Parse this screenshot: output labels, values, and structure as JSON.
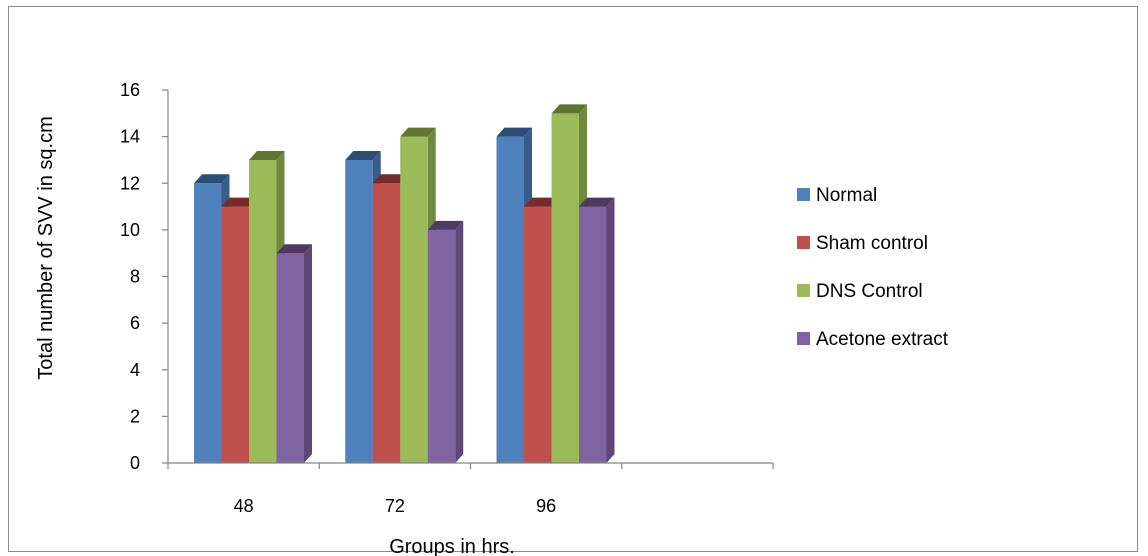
{
  "chart_data": {
    "type": "bar",
    "style": "3d-clustered-column",
    "categories": [
      "48",
      "72",
      "96"
    ],
    "series": [
      {
        "name": "Normal",
        "values": [
          12,
          13,
          14
        ],
        "color": "#4F81BD",
        "side": "#385D8A",
        "top": "#2C4D75"
      },
      {
        "name": "Sham control",
        "values": [
          11,
          12,
          11
        ],
        "color": "#C0504D",
        "side": "#8C3836",
        "top": "#772C2A"
      },
      {
        "name": "DNS Control",
        "values": [
          13,
          14,
          15
        ],
        "color": "#9BBB59",
        "side": "#71893F",
        "top": "#5F7530"
      },
      {
        "name": "Acetone extract",
        "values": [
          9,
          10,
          11
        ],
        "color": "#8064A2",
        "side": "#5C4776",
        "top": "#4D3B62"
      }
    ],
    "xlabel": "Groups in hrs.",
    "ylabel": "Total number  of SVV in sq.cm",
    "ylim": [
      0,
      16
    ],
    "yticks": [
      "0",
      "2",
      "4",
      "6",
      "8",
      "10",
      "12",
      "14",
      "16"
    ],
    "grid": false,
    "legend_position": "right"
  }
}
